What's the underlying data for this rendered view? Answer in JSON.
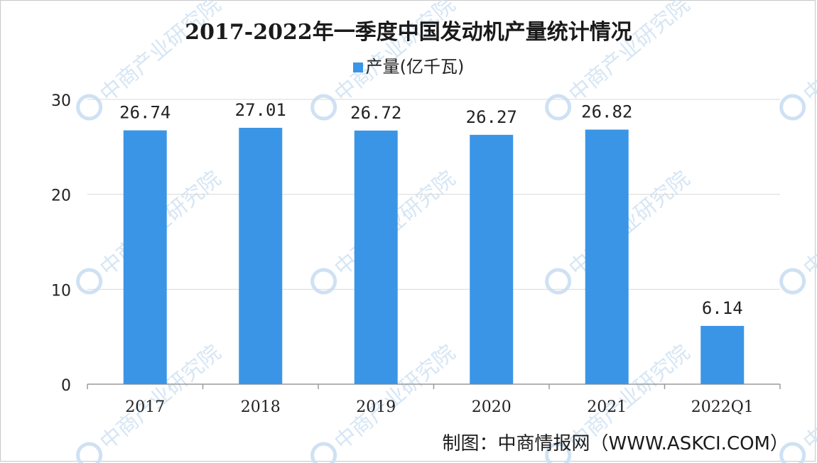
{
  "chart_data": {
    "type": "bar",
    "title": "2017-2022年一季度中国发动机产量统计情况",
    "legend": "产量(亿千瓦)",
    "categories": [
      "2017",
      "2018",
      "2019",
      "2020",
      "2021",
      "2022Q1"
    ],
    "values": [
      26.74,
      27.01,
      26.72,
      26.27,
      26.82,
      6.14
    ],
    "value_labels": [
      "26.74",
      "27.01",
      "26.72",
      "26.27",
      "26.82",
      "6.14"
    ],
    "yticks": [
      "0",
      "10",
      "20",
      "30"
    ],
    "ylim": [
      0,
      30
    ],
    "grid": true,
    "legend_position": "top",
    "bar_color": "#3b95e6"
  },
  "source": "制图：中商情报网（WWW.ASKCI.COM）",
  "watermark": "中商产业研究院"
}
